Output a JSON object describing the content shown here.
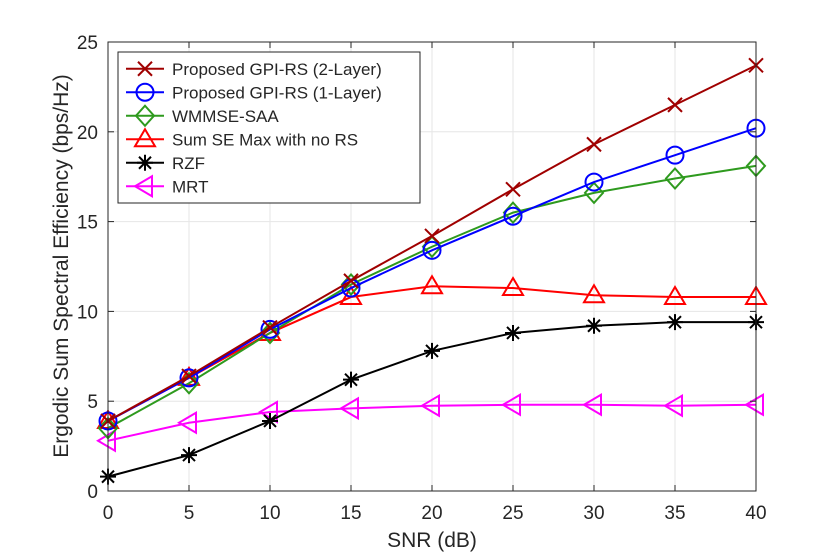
{
  "chart_data": {
    "type": "line",
    "title": "",
    "xlabel": "SNR (dB)",
    "ylabel": "Ergodic Sum Spectral Efficiency (bps/Hz)",
    "xlim": [
      0,
      40
    ],
    "ylim": [
      0,
      25
    ],
    "x": [
      0,
      5,
      10,
      15,
      20,
      25,
      30,
      35,
      40
    ],
    "xticks": [
      "0",
      "5",
      "10",
      "15",
      "20",
      "25",
      "30",
      "35",
      "40"
    ],
    "yticks": [
      "0",
      "5",
      "10",
      "15",
      "20",
      "25"
    ],
    "grid": true,
    "legend_position": "top-left",
    "series": [
      {
        "name": "Proposed GPI-RS (2-Layer)",
        "color": "#a00000",
        "marker": "x",
        "values": [
          3.9,
          6.4,
          9.1,
          11.7,
          14.2,
          16.8,
          19.3,
          21.5,
          23.7
        ]
      },
      {
        "name": "Proposed GPI-RS (1-Layer)",
        "color": "#0000ff",
        "marker": "circle",
        "values": [
          3.9,
          6.3,
          9.0,
          11.3,
          13.4,
          15.3,
          17.2,
          18.7,
          20.2
        ]
      },
      {
        "name": "WMMSE-SAA",
        "color": "#2e9a1e",
        "marker": "diamond",
        "values": [
          3.5,
          6.0,
          8.8,
          11.5,
          13.6,
          15.5,
          16.6,
          17.4,
          18.1
        ]
      },
      {
        "name": "Sum SE Max with no RS",
        "color": "#ff0000",
        "marker": "triangle-up",
        "values": [
          3.9,
          6.3,
          8.8,
          10.8,
          11.4,
          11.3,
          10.9,
          10.8,
          10.8
        ]
      },
      {
        "name": "RZF",
        "color": "#000000",
        "marker": "asterisk",
        "values": [
          0.8,
          2.0,
          3.9,
          6.2,
          7.8,
          8.8,
          9.2,
          9.4,
          9.4
        ]
      },
      {
        "name": "MRT",
        "color": "#ff00ff",
        "marker": "triangle-left",
        "values": [
          2.8,
          3.8,
          4.4,
          4.6,
          4.75,
          4.8,
          4.8,
          4.75,
          4.8
        ]
      }
    ]
  }
}
